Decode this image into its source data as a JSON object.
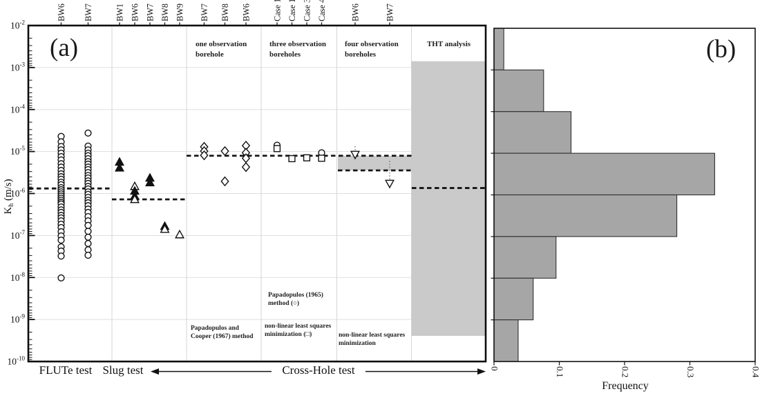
{
  "panel_a": {
    "label": "(a)",
    "y_axis": {
      "symbol": "K",
      "subscript": "h",
      "units": " (m/s)",
      "exponents": [
        -2,
        -3,
        -4,
        -5,
        -6,
        -7,
        -8,
        -9,
        -10
      ]
    },
    "headers": {
      "obs1": "one observation\nborehole",
      "obs3": "three observation\nboreholes",
      "obs4": "four observation\nboreholes",
      "tht": "THT analysis"
    },
    "notes": {
      "obs1": "Papadopulos and\nCooper (1967) method",
      "obs3_top": "Papadopulos (1965)\nmethod (○)",
      "obs3_bottom": "non-linear least squares\nminimization (□)",
      "obs4": "non-linear least squares\nminimization"
    },
    "bottom_labels": {
      "flute": "FLUTe test",
      "slug": "Slug test",
      "crosshole": "Cross-Hole test"
    }
  },
  "panel_b": {
    "label": "(b)",
    "xlabel": "Frequency"
  },
  "chart_data": [
    {
      "type": "scatter",
      "panel": "a",
      "yscale": "log",
      "ylabel": "Kh (m/s)",
      "ylim": [
        1e-10,
        0.01
      ],
      "grid": true,
      "sections": [
        {
          "id": "flute",
          "label": "FLUTe test",
          "median_dashed_log10": -5.88,
          "columns": [
            {
              "label": "BW6",
              "marker": "circle",
              "log10_values": [
                -4.64,
                -4.77,
                -4.88,
                -4.96,
                -5.04,
                -5.12,
                -5.2,
                -5.29,
                -5.37,
                -5.45,
                -5.53,
                -5.6,
                -5.66,
                -5.73,
                -5.79,
                -5.86,
                -5.91,
                -5.96,
                -6.01,
                -6.06,
                -6.11,
                -6.16,
                -6.21,
                -6.25,
                -6.32,
                -6.39,
                -6.45,
                -6.52,
                -6.58,
                -6.65,
                -6.73,
                -6.81,
                -6.91,
                -7.01,
                -7.11,
                -7.27,
                -7.37,
                -7.49,
                -8.01
              ]
            },
            {
              "label": "BW7",
              "marker": "circle",
              "log10_values": [
                -4.56,
                -4.87,
                -4.96,
                -5.04,
                -5.1,
                -5.17,
                -5.24,
                -5.3,
                -5.37,
                -5.43,
                -5.5,
                -5.57,
                -5.63,
                -5.7,
                -5.76,
                -5.83,
                -5.89,
                -5.96,
                -6.02,
                -6.09,
                -6.16,
                -6.22,
                -6.29,
                -6.37,
                -6.45,
                -6.55,
                -6.65,
                -6.76,
                -6.9,
                -7.04,
                -7.19,
                -7.34,
                -7.47
              ]
            }
          ]
        },
        {
          "id": "slug",
          "label": "Slug test",
          "median_dashed_log10": -6.14,
          "columns": [
            {
              "label": "BW1",
              "points": [
                {
                  "m": "tri-up-filled",
                  "v": -5.25
                },
                {
                  "m": "tri-up-filled",
                  "v": -5.39
                }
              ]
            },
            {
              "label": "BW6",
              "points": [
                {
                  "m": "tri-up-open",
                  "v": -5.83
                },
                {
                  "m": "tri-up-filled",
                  "v": -5.94
                },
                {
                  "m": "tri-up-filled",
                  "v": -6.06
                },
                {
                  "m": "tri-up-open",
                  "v": -6.14
                }
              ]
            },
            {
              "label": "BW7",
              "points": [
                {
                  "m": "tri-up-filled",
                  "v": -5.63
                },
                {
                  "m": "tri-up-filled",
                  "v": -5.74
                }
              ]
            },
            {
              "label": "BW8",
              "points": [
                {
                  "m": "tri-up-filled",
                  "v": -6.78
                },
                {
                  "m": "tri-up-open",
                  "v": -6.85
                }
              ]
            },
            {
              "label": "BW9",
              "points": [
                {
                  "m": "tri-up-open",
                  "v": -6.98
                }
              ]
            }
          ]
        },
        {
          "id": "obs1",
          "label": "one observation borehole",
          "median_dashed_log10": -5.1,
          "columns": [
            {
              "label": "BW7",
              "points": [
                {
                  "m": "diamond",
                  "v": -4.89
                },
                {
                  "m": "diamond",
                  "v": -4.99
                },
                {
                  "m": "diamond",
                  "v": -5.09
                }
              ]
            },
            {
              "label": "BW8",
              "points": [
                {
                  "m": "diamond",
                  "v": -4.99
                },
                {
                  "m": "diamond",
                  "v": -5.71
                }
              ]
            },
            {
              "label": "BW6",
              "points": [
                {
                  "m": "diamond",
                  "v": -4.86
                },
                {
                  "m": "diamond",
                  "v": -5.03
                },
                {
                  "m": "diamond",
                  "v": -5.16
                },
                {
                  "m": "diamond",
                  "v": -5.37
                }
              ]
            }
          ]
        },
        {
          "id": "obs3",
          "label": "three observation boreholes",
          "columns": [
            {
              "label": "Case 1",
              "points": [
                {
                  "m": "circle",
                  "v": -4.85
                },
                {
                  "m": "square",
                  "v": -4.93
                }
              ]
            },
            {
              "label": "Case 1",
              "points": [
                {
                  "m": "square",
                  "v": -5.17
                }
              ]
            },
            {
              "label": "Case 3",
              "points": [
                {
                  "m": "square",
                  "v": -5.15
                }
              ]
            },
            {
              "label": "Case 4",
              "points": [
                {
                  "m": "circle",
                  "v": -5.03
                },
                {
                  "m": "square",
                  "v": -5.16
                }
              ]
            }
          ]
        },
        {
          "id": "obs4",
          "label": "four observation boreholes",
          "range_log10": [
            -5.1,
            -5.45
          ],
          "columns": [
            {
              "label": "BW6",
              "points": [
                {
                  "m": "tri-down",
                  "v": -5.07,
                  "whisker_to": -4.87
                }
              ]
            },
            {
              "label": "BW7",
              "points": [
                {
                  "m": "tri-down",
                  "v": -5.76,
                  "whisker_to": -5.22
                }
              ]
            }
          ]
        },
        {
          "id": "tht",
          "label": "THT analysis",
          "median_dashed_log10": -5.87,
          "range_log10": [
            -2.85,
            -9.39
          ],
          "columns": []
        }
      ]
    },
    {
      "type": "bar-horizontal",
      "panel": "b",
      "xlabel": "Frequency",
      "xlim": [
        0,
        0.4
      ],
      "xticks": [
        0,
        0.1,
        0.2,
        0.3,
        0.4
      ],
      "xtick_labels": [
        "0",
        "0.1",
        "0.2",
        "0.3",
        "0.4"
      ],
      "bins_log10_K": [
        [
          -2,
          -3
        ],
        [
          -3,
          -4
        ],
        [
          -4,
          -5
        ],
        [
          -5,
          -6
        ],
        [
          -6,
          -7
        ],
        [
          -7,
          -8
        ],
        [
          -8,
          -9
        ],
        [
          -9,
          -10
        ]
      ],
      "frequencies": [
        0.015,
        0.076,
        0.118,
        0.338,
        0.28,
        0.095,
        0.06,
        0.037
      ],
      "bar_color": "#a6a6a6",
      "band_color": "#cacaca"
    }
  ]
}
